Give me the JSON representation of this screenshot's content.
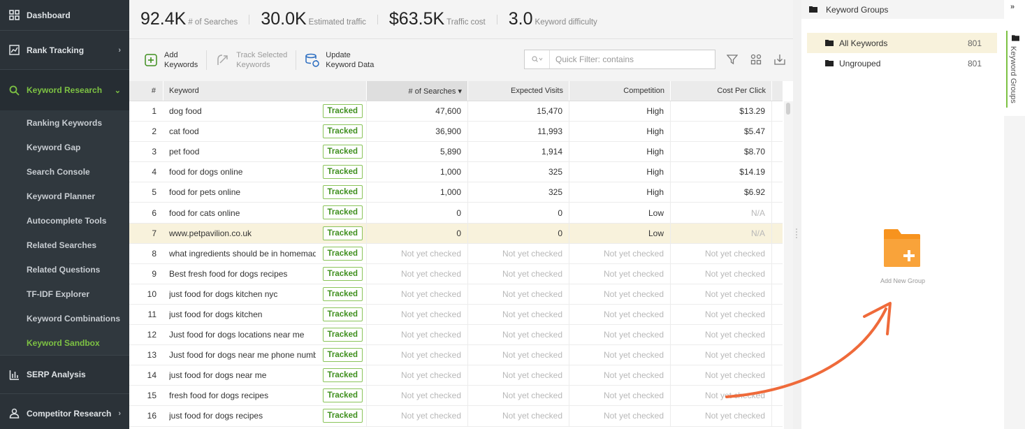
{
  "sidebar": {
    "top_items": [
      {
        "label": "Dashboard"
      },
      {
        "label": "Rank Tracking"
      },
      {
        "label": "Keyword Research"
      }
    ],
    "sub_items": [
      {
        "label": "Ranking Keywords"
      },
      {
        "label": "Keyword Gap"
      },
      {
        "label": "Search Console"
      },
      {
        "label": "Keyword Planner"
      },
      {
        "label": "Autocomplete Tools"
      },
      {
        "label": "Related Searches"
      },
      {
        "label": "Related Questions"
      },
      {
        "label": "TF-IDF Explorer"
      },
      {
        "label": "Keyword Combinations"
      },
      {
        "label": "Keyword Sandbox"
      }
    ],
    "bottom_items": [
      {
        "label": "SERP Analysis"
      },
      {
        "label": "Competitor Research"
      }
    ]
  },
  "stats": [
    {
      "value": "92.4K",
      "label": "# of Searches"
    },
    {
      "value": "30.0K",
      "label": "Estimated traffic"
    },
    {
      "value": "$63.5K",
      "label": "Traffic cost"
    },
    {
      "value": "3.0",
      "label": "Keyword difficulty"
    }
  ],
  "toolbar": {
    "add_line1": "Add",
    "add_line2": "Keywords",
    "track_line1": "Track Selected",
    "track_line2": "Keywords",
    "update_line1": "Update",
    "update_line2": "Keyword Data",
    "search_placeholder": "Quick Filter: contains"
  },
  "table": {
    "headers": {
      "num": "#",
      "keyword": "Keyword",
      "searches": "# of Searches ▾",
      "visits": "Expected Visits",
      "competition": "Competition",
      "cpc": "Cost Per Click"
    },
    "tracked_label": "Tracked",
    "rows": [
      {
        "n": "1",
        "kw": "dog food",
        "s": "47,600",
        "v": "15,470",
        "c": "High",
        "p": "$13.29"
      },
      {
        "n": "2",
        "kw": "cat food",
        "s": "36,900",
        "v": "11,993",
        "c": "High",
        "p": "$5.47"
      },
      {
        "n": "3",
        "kw": "pet food",
        "s": "5,890",
        "v": "1,914",
        "c": "High",
        "p": "$8.70"
      },
      {
        "n": "4",
        "kw": "food for dogs online",
        "s": "1,000",
        "v": "325",
        "c": "High",
        "p": "$14.19"
      },
      {
        "n": "5",
        "kw": "food for pets online",
        "s": "1,000",
        "v": "325",
        "c": "High",
        "p": "$6.92"
      },
      {
        "n": "6",
        "kw": "food for cats online",
        "s": "0",
        "v": "0",
        "c": "Low",
        "p": "N/A"
      },
      {
        "n": "7",
        "kw": "www.petpavilion.co.uk",
        "s": "0",
        "v": "0",
        "c": "Low",
        "p": "N/A"
      },
      {
        "n": "8",
        "kw": "what ingredients should be in homemade",
        "s": "Not yet checked",
        "v": "Not yet checked",
        "c": "Not yet checked",
        "p": "Not yet checked"
      },
      {
        "n": "9",
        "kw": "Best fresh food for dogs recipes",
        "s": "Not yet checked",
        "v": "Not yet checked",
        "c": "Not yet checked",
        "p": "Not yet checked"
      },
      {
        "n": "10",
        "kw": "just food for dogs kitchen nyc",
        "s": "Not yet checked",
        "v": "Not yet checked",
        "c": "Not yet checked",
        "p": "Not yet checked"
      },
      {
        "n": "11",
        "kw": "just food for dogs kitchen",
        "s": "Not yet checked",
        "v": "Not yet checked",
        "c": "Not yet checked",
        "p": "Not yet checked"
      },
      {
        "n": "12",
        "kw": "Just food for dogs locations near me",
        "s": "Not yet checked",
        "v": "Not yet checked",
        "c": "Not yet checked",
        "p": "Not yet checked"
      },
      {
        "n": "13",
        "kw": "Just food for dogs near me phone number",
        "s": "Not yet checked",
        "v": "Not yet checked",
        "c": "Not yet checked",
        "p": "Not yet checked"
      },
      {
        "n": "14",
        "kw": "just food for dogs near me",
        "s": "Not yet checked",
        "v": "Not yet checked",
        "c": "Not yet checked",
        "p": "Not yet checked"
      },
      {
        "n": "15",
        "kw": "fresh food for dogs recipes",
        "s": "Not yet checked",
        "v": "Not yet checked",
        "c": "Not yet checked",
        "p": "Not yet checked"
      },
      {
        "n": "16",
        "kw": "just food for dogs recipes",
        "s": "Not yet checked",
        "v": "Not yet checked",
        "c": "Not yet checked",
        "p": "Not yet checked"
      }
    ]
  },
  "groups_panel": {
    "title": "Keyword Groups",
    "groups": [
      {
        "name": "All Keywords",
        "count": "801"
      },
      {
        "name": "Ungrouped",
        "count": "801"
      }
    ],
    "add_new_label": "Add New Group",
    "vertical_tab": "Keyword Groups"
  },
  "colors": {
    "accent": "#7dc243",
    "sidebar_bg": "#2b3238",
    "highlight_row": "#f8f2dc",
    "folder_orange": "#f7931e",
    "arrow": "#ef6a3a"
  }
}
